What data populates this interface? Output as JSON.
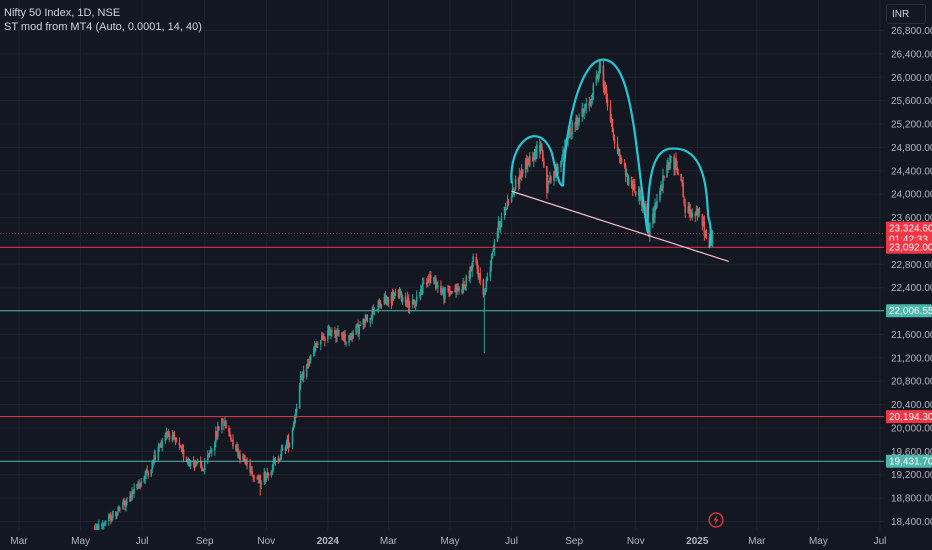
{
  "header": {
    "symbol_line": "Nifty 50 Index, 1D, NSE",
    "indicator_line": "ST mod from MT4 (Auto, 0.0001, 14, 40)",
    "currency": "INR"
  },
  "colors": {
    "background": "#131722",
    "grid": "#1e222d",
    "up": "#26a69a",
    "down": "#ef5350",
    "red_line": "#f23645",
    "teal_line": "#4db6ac",
    "pattern": "#22c7d6",
    "neckline": "#f8bbd0",
    "axis_text": "#b2b5be"
  },
  "price_axis": {
    "ticks": [
      "26,800.00",
      "26,400.00",
      "26,000.00",
      "25,600.00",
      "25,200.00",
      "24,800.00",
      "24,400.00",
      "24,000.00",
      "23,600.00",
      "23,200.00",
      "22,800.00",
      "22,400.00",
      "22,000.00",
      "21,600.00",
      "21,200.00",
      "20,800.00",
      "20,400.00",
      "20,000.00",
      "19,600.00",
      "19,200.00",
      "18,800.00",
      "18,400.00"
    ],
    "tick_values": [
      26800,
      26400,
      26000,
      25600,
      25200,
      24800,
      24400,
      24000,
      23600,
      23200,
      22800,
      22400,
      22000,
      21600,
      21200,
      20800,
      20400,
      20000,
      19600,
      19200,
      18800,
      18400
    ]
  },
  "time_axis": {
    "labels": [
      "Mar",
      "May",
      "Jul",
      "Sep",
      "Nov",
      "2024",
      "Mar",
      "May",
      "Jul",
      "Sep",
      "Nov",
      "2025",
      "Mar",
      "May",
      "Jul"
    ],
    "bold": [
      false,
      false,
      false,
      false,
      false,
      true,
      false,
      false,
      false,
      false,
      false,
      true,
      false,
      false,
      false
    ]
  },
  "levels": [
    {
      "value": 23092.0,
      "label": "23,092.00",
      "color": "#f23645",
      "label_bg": "#f23645"
    },
    {
      "value": 22006.55,
      "label": "22,006.55",
      "color": "#4db6ac",
      "label_bg": "#4db6ac"
    },
    {
      "value": 20194.3,
      "label": "20,194.30",
      "color": "#f23645",
      "label_bg": "#f23645"
    },
    {
      "value": 19431.7,
      "label": "19,431.70",
      "color": "#4db6ac",
      "label_bg": "#4db6ac"
    }
  ],
  "last_price": {
    "value": 23324.6,
    "label": "23,324.60",
    "countdown": "01:42:33",
    "color": "#f23645"
  },
  "chart_data": {
    "type": "candlestick",
    "title": "Nifty 50 Index, 1D, NSE",
    "ylim": [
      18300,
      27000
    ],
    "x_range": [
      "2023-03",
      "2025-07"
    ],
    "price_path": [
      [
        "2023-05-15",
        18250
      ],
      [
        "2023-06-15",
        18700
      ],
      [
        "2023-07-10",
        19350
      ],
      [
        "2023-07-25",
        19950
      ],
      [
        "2023-08-15",
        19450
      ],
      [
        "2023-08-31",
        19300
      ],
      [
        "2023-09-18",
        20150
      ],
      [
        "2023-10-05",
        19550
      ],
      [
        "2023-10-25",
        19100
      ],
      [
        "2023-11-05",
        19300
      ],
      [
        "2023-11-25",
        19800
      ],
      [
        "2023-12-05",
        20800
      ],
      [
        "2023-12-20",
        21400
      ],
      [
        "2024-01-05",
        21700
      ],
      [
        "2024-01-20",
        21500
      ],
      [
        "2024-02-05",
        21800
      ],
      [
        "2024-02-20",
        22100
      ],
      [
        "2024-03-10",
        22300
      ],
      [
        "2024-03-25",
        22100
      ],
      [
        "2024-04-10",
        22600
      ],
      [
        "2024-04-25",
        22300
      ],
      [
        "2024-05-15",
        22400
      ],
      [
        "2024-05-25",
        22900
      ],
      [
        "2024-06-04",
        22300
      ],
      [
        "2024-06-15",
        23300
      ],
      [
        "2024-06-30",
        24000
      ],
      [
        "2024-07-15",
        24500
      ],
      [
        "2024-07-30",
        24850
      ],
      [
        "2024-08-05",
        24100
      ],
      [
        "2024-08-15",
        24400
      ],
      [
        "2024-08-30",
        25200
      ],
      [
        "2024-09-15",
        25500
      ],
      [
        "2024-09-27",
        26200
      ],
      [
        "2024-10-10",
        25000
      ],
      [
        "2024-10-25",
        24200
      ],
      [
        "2024-11-05",
        24000
      ],
      [
        "2024-11-14",
        23350
      ],
      [
        "2024-11-22",
        23900
      ],
      [
        "2024-12-05",
        24600
      ],
      [
        "2024-12-15",
        24400
      ],
      [
        "2024-12-20",
        23700
      ],
      [
        "2025-01-01",
        23700
      ],
      [
        "2025-01-06",
        23500
      ],
      [
        "2025-01-13",
        23100
      ],
      [
        "2025-01-16",
        23324.6
      ]
    ],
    "levels": [
      23092.0,
      22006.55,
      20194.3,
      19431.7
    ],
    "last_close": 23324.6,
    "pattern": "head-and-shoulders",
    "neckline": [
      [
        "2024-07-01",
        24050
      ],
      [
        "2025-02-01",
        22850
      ]
    ]
  },
  "footer": {
    "flash_icon": "lightning-icon"
  }
}
